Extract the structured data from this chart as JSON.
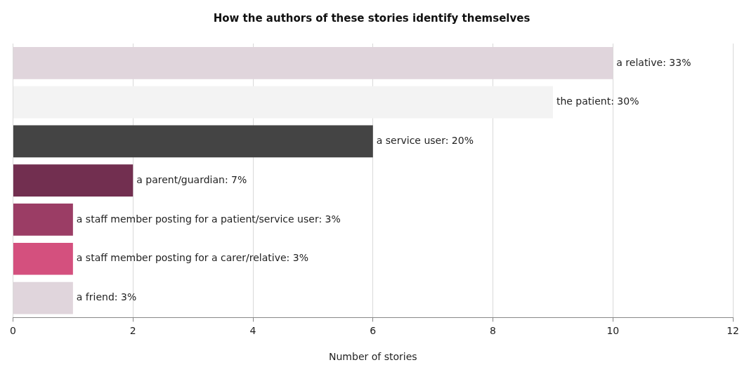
{
  "chart_data": {
    "type": "bar",
    "orientation": "horizontal",
    "title": "How the authors of these stories identify themselves",
    "xlabel": "Number of stories",
    "categories": [
      "a relative: 33%",
      "the patient: 30%",
      "a service user: 20%",
      "a parent/guardian: 7%",
      "a staff member posting for a patient/service user: 3%",
      "a staff member posting for a carer/relative: 3%",
      "a friend: 3%"
    ],
    "values": [
      10,
      9,
      6,
      2,
      1,
      1,
      1
    ],
    "colors": [
      "#e0d5dc",
      "#f3f3f3",
      "#444444",
      "#722f50",
      "#9b3d65",
      "#d4507e",
      "#e0d5dc"
    ],
    "xlim": [
      0,
      12
    ],
    "xticks": [
      0,
      2,
      4,
      6,
      8,
      10,
      12
    ],
    "grid": "x",
    "legend": false
  }
}
